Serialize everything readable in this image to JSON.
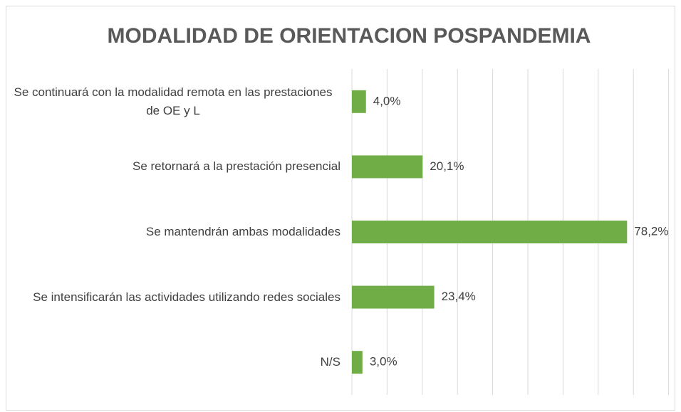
{
  "chart_data": {
    "type": "bar",
    "orientation": "horizontal",
    "title": "MODALIDAD DE ORIENTACION POSPANDEMIA",
    "categories": [
      "Se continuará con la modalidad remota en las prestaciones de OE y L",
      "Se retornará a la prestación presencial",
      "Se mantendrán ambas modalidades",
      "Se intensificarán las actividades utilizando redes sociales",
      "N/S"
    ],
    "values": [
      4.0,
      20.1,
      78.2,
      23.4,
      3.0
    ],
    "value_labels": [
      "4,0%",
      "20,1%",
      "78,2%",
      "23,4%",
      "3,0%"
    ],
    "color": "#70ad47",
    "xlim": [
      0,
      90
    ],
    "xticks": [
      0,
      10,
      20,
      30,
      40,
      50,
      60,
      70,
      80,
      90
    ],
    "grid": true
  }
}
